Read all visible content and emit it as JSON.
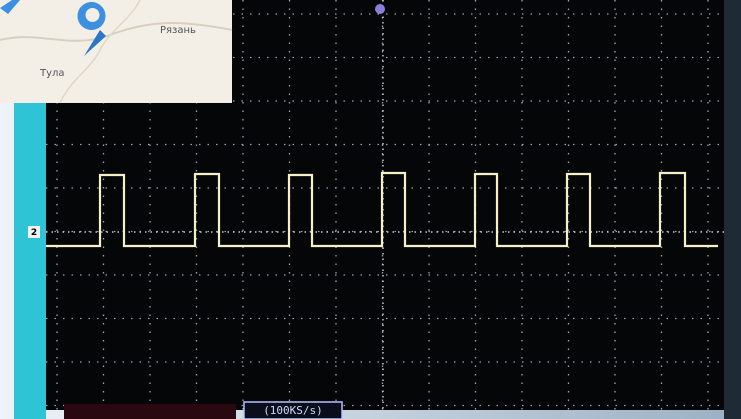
{
  "map": {
    "city_1": "Рязань",
    "city_2": "Тула"
  },
  "scope": {
    "channel": "2",
    "sample_rate": "(100KS/s)"
  }
}
